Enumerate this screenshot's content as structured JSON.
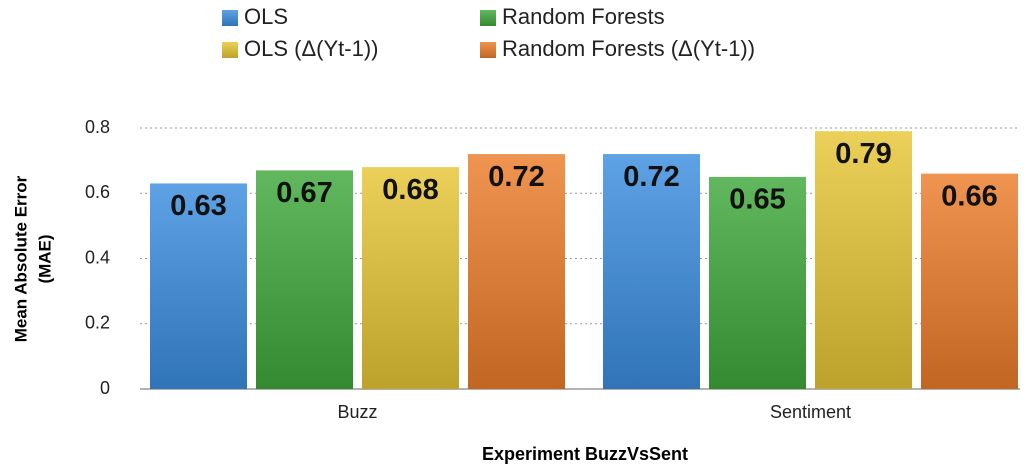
{
  "chart_data": {
    "type": "bar",
    "categories": [
      "Buzz",
      "Sentiment"
    ],
    "series": [
      {
        "name": "OLS",
        "color": "#3b8ee0",
        "values": [
          0.63,
          0.72
        ]
      },
      {
        "name": "Random Forests",
        "color": "#3fa83a",
        "values": [
          0.67,
          0.65
        ]
      },
      {
        "name": "OLS (Δ(Yt-1))",
        "color": "#e6c534",
        "values": [
          0.68,
          0.79
        ]
      },
      {
        "name": "Random Forests (Δ(Yt-1))",
        "color": "#ec7c2a",
        "values": [
          0.72,
          0.66
        ]
      }
    ],
    "y_label": [
      "Mean Absolute Error",
      "(MAE)"
    ],
    "x_label": "Experiment BuzzVsSent",
    "ylim": [
      0,
      0.8
    ],
    "yticks": [
      0,
      0.2,
      0.4,
      0.6,
      0.8
    ],
    "grid": true
  }
}
